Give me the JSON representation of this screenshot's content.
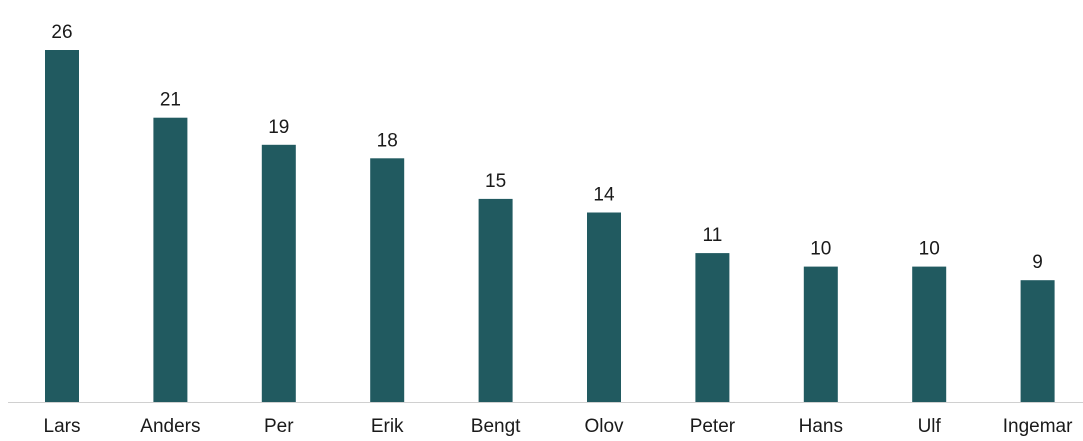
{
  "chart_data": {
    "type": "bar",
    "categories": [
      "Lars",
      "Anders",
      "Per",
      "Erik",
      "Bengt",
      "Olov",
      "Peter",
      "Hans",
      "Ulf",
      "Ingemar"
    ],
    "values": [
      26,
      21,
      19,
      18,
      15,
      14,
      11,
      10,
      10,
      9
    ],
    "title": "",
    "xlabel": "",
    "ylabel": "",
    "ylim": [
      0,
      26
    ],
    "grid": false,
    "legend": "none",
    "data_labels": true,
    "bar_color": "#215a60"
  }
}
